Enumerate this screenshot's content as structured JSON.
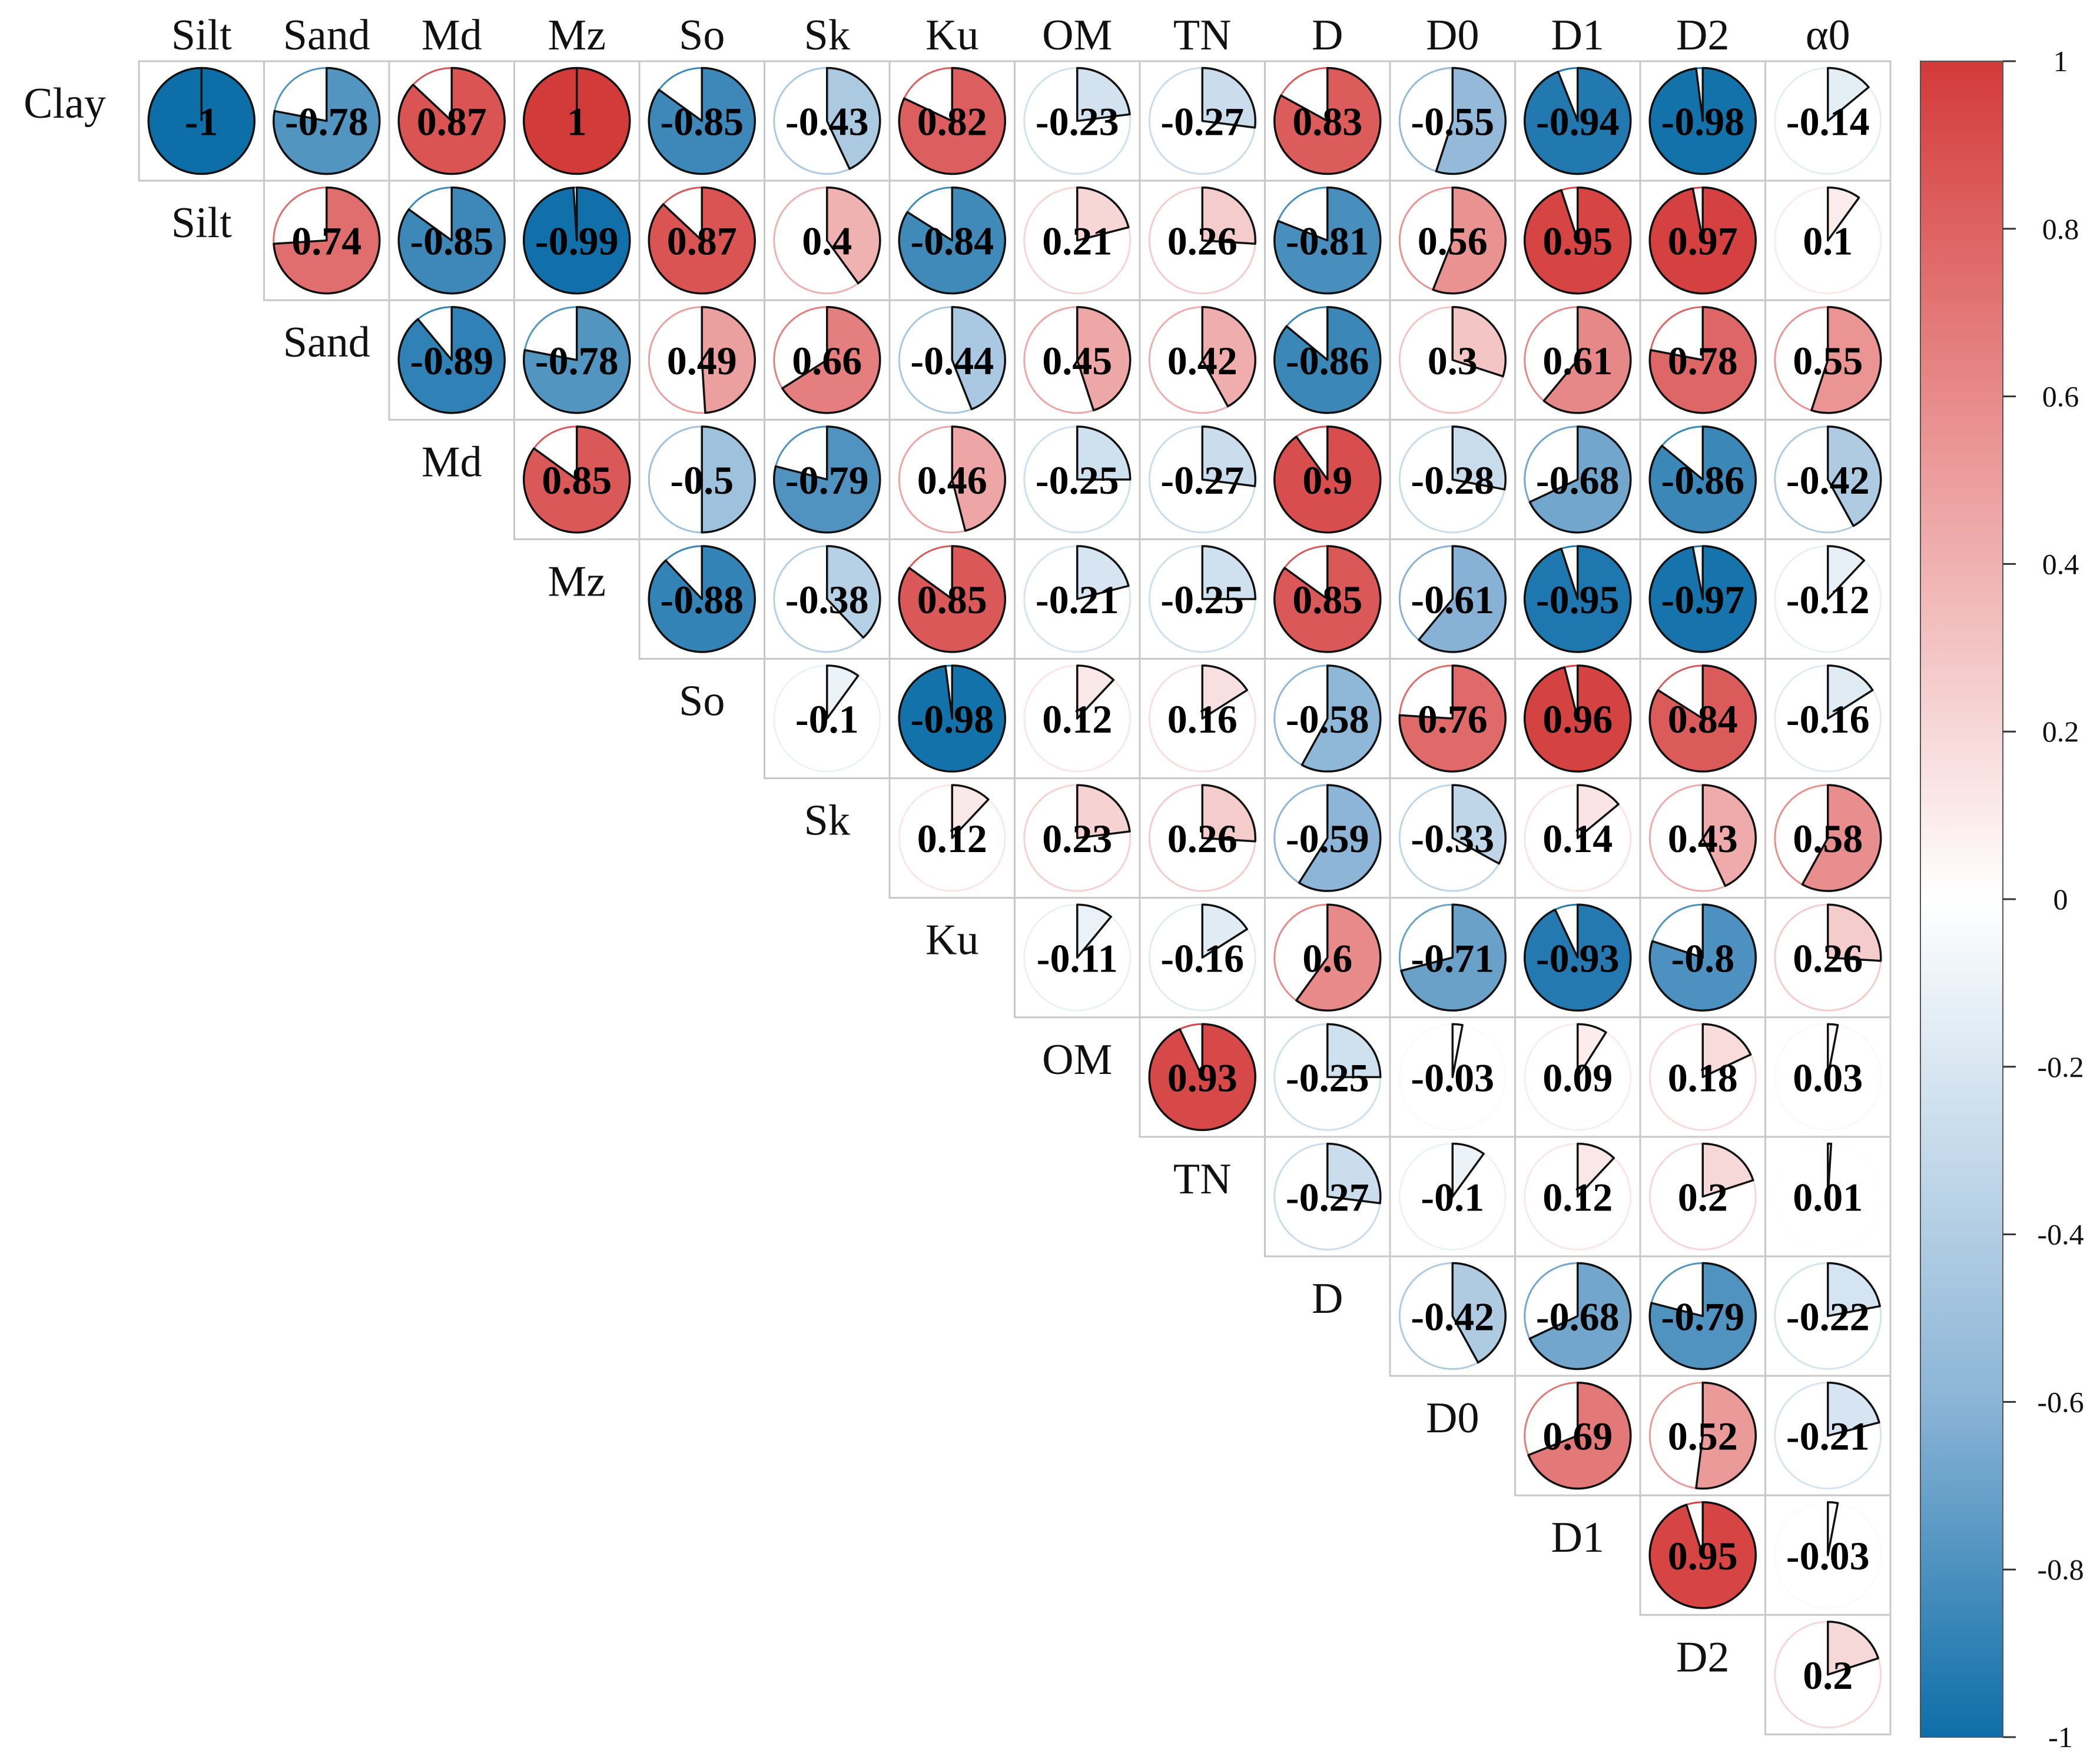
{
  "chart_data": {
    "type": "heatmap",
    "subtype": "correlation-pie-upper-triangle",
    "row_labels": [
      "Clay",
      "Silt",
      "Sand",
      "Md",
      "Mz",
      "So",
      "Sk",
      "Ku",
      "OM",
      "TN",
      "D",
      "D0",
      "D1",
      "D2"
    ],
    "column_labels": [
      "Silt",
      "Sand",
      "Md",
      "Mz",
      "So",
      "Sk",
      "Ku",
      "OM",
      "TN",
      "D",
      "D0",
      "D1",
      "D2",
      "α0"
    ],
    "values": [
      [
        -1,
        -0.78,
        0.87,
        1,
        -0.85,
        -0.43,
        0.82,
        -0.23,
        -0.27,
        0.83,
        -0.55,
        -0.94,
        -0.98,
        -0.14
      ],
      [
        0.74,
        -0.85,
        -0.99,
        0.87,
        0.4,
        -0.84,
        0.21,
        0.26,
        -0.81,
        0.56,
        0.95,
        0.97,
        0.1
      ],
      [
        -0.89,
        -0.78,
        0.49,
        0.66,
        -0.44,
        0.45,
        0.42,
        -0.86,
        0.3,
        0.61,
        0.78,
        0.55
      ],
      [
        0.85,
        -0.5,
        -0.79,
        0.46,
        -0.25,
        -0.27,
        0.9,
        -0.28,
        -0.68,
        -0.86,
        -0.42
      ],
      [
        -0.88,
        -0.38,
        0.85,
        -0.21,
        -0.25,
        0.85,
        -0.61,
        -0.95,
        -0.97,
        -0.12
      ],
      [
        -0.1,
        -0.98,
        0.12,
        0.16,
        -0.58,
        0.76,
        0.96,
        0.84,
        -0.16
      ],
      [
        0.12,
        0.23,
        0.26,
        -0.59,
        -0.33,
        0.14,
        0.43,
        0.58
      ],
      [
        -0.11,
        -0.16,
        0.6,
        -0.71,
        -0.93,
        -0.8,
        0.26
      ],
      [
        0.93,
        -0.25,
        -0.03,
        0.09,
        0.18,
        0.03
      ],
      [
        -0.27,
        -0.1,
        0.12,
        0.2,
        0.01
      ],
      [
        -0.42,
        -0.68,
        -0.79,
        -0.22
      ],
      [
        0.69,
        0.52,
        -0.21
      ],
      [
        0.95,
        -0.03
      ],
      [
        0.2
      ]
    ],
    "colorbar": {
      "range": [
        -1,
        1
      ],
      "ticks": [
        "1",
        "0.8",
        "0.6",
        "0.4",
        "0.2",
        "0",
        "-0.2",
        "-0.4",
        "-0.6",
        "-0.8",
        "-1"
      ],
      "colors": {
        "negative": "#0e6ea8",
        "zero": "#ffffff",
        "positive": "#d33a3a"
      }
    },
    "legend_placement": "right"
  }
}
